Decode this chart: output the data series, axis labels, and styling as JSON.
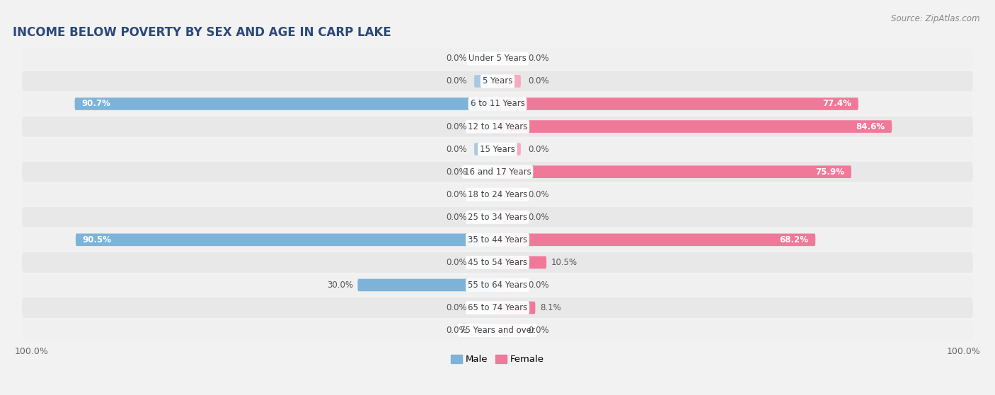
{
  "title": "INCOME BELOW POVERTY BY SEX AND AGE IN CARP LAKE",
  "source": "Source: ZipAtlas.com",
  "categories": [
    "Under 5 Years",
    "5 Years",
    "6 to 11 Years",
    "12 to 14 Years",
    "15 Years",
    "16 and 17 Years",
    "18 to 24 Years",
    "25 to 34 Years",
    "35 to 44 Years",
    "45 to 54 Years",
    "55 to 64 Years",
    "65 to 74 Years",
    "75 Years and over"
  ],
  "male_values": [
    0.0,
    0.0,
    90.7,
    0.0,
    0.0,
    0.0,
    0.0,
    0.0,
    90.5,
    0.0,
    30.0,
    0.0,
    0.0
  ],
  "female_values": [
    0.0,
    0.0,
    77.4,
    84.6,
    0.0,
    75.9,
    0.0,
    0.0,
    68.2,
    10.5,
    0.0,
    8.1,
    0.0
  ],
  "male_color": "#7db3d8",
  "female_color": "#f07898",
  "male_stub_color": "#aac8e4",
  "female_stub_color": "#f5aabf",
  "male_label": "Male",
  "female_label": "Female",
  "bar_height": 0.55,
  "stub_value": 5.0,
  "xlim": 100.0,
  "row_colors": [
    "#f0f0f0",
    "#e8e8e8"
  ],
  "label_bg_color": "#ffffff",
  "title_fontsize": 12,
  "cat_fontsize": 8.5,
  "val_fontsize": 8.5,
  "tick_fontsize": 9,
  "source_fontsize": 8.5
}
